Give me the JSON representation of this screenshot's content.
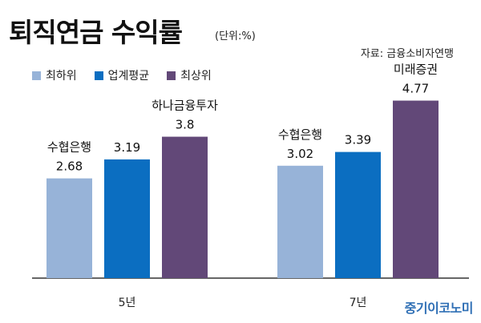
{
  "header": {
    "title": "퇴직연금 수익률",
    "unit": "(단위:%)",
    "source": "자료: 금융소비자연맹"
  },
  "brand": "중기이코노미",
  "colors": {
    "lowest": "#97b3d8",
    "average": "#0b6ec1",
    "highest": "#624878",
    "axis": "#333333"
  },
  "chart_data": {
    "type": "bar",
    "title": "퇴직연금 수익률",
    "ylabel": "",
    "xlabel": "",
    "ylim": [
      0,
      5.6
    ],
    "grid": false,
    "legend_position": "top-left",
    "categories": [
      "5년",
      "7년"
    ],
    "series": [
      {
        "name": "최하위",
        "color_key": "lowest",
        "values": [
          2.68,
          3.02
        ],
        "labels": [
          "2.68",
          "3.02"
        ],
        "annotations": [
          "수협은행",
          "수협은행"
        ]
      },
      {
        "name": "업계평균",
        "color_key": "average",
        "values": [
          3.19,
          3.39
        ],
        "labels": [
          "3.19",
          "3.39"
        ],
        "annotations": [
          "",
          ""
        ]
      },
      {
        "name": "최상위",
        "color_key": "highest",
        "values": [
          3.8,
          4.77
        ],
        "labels": [
          "3.8",
          "4.77"
        ],
        "annotations": [
          "하나금융투자",
          "미래증권"
        ]
      }
    ]
  }
}
